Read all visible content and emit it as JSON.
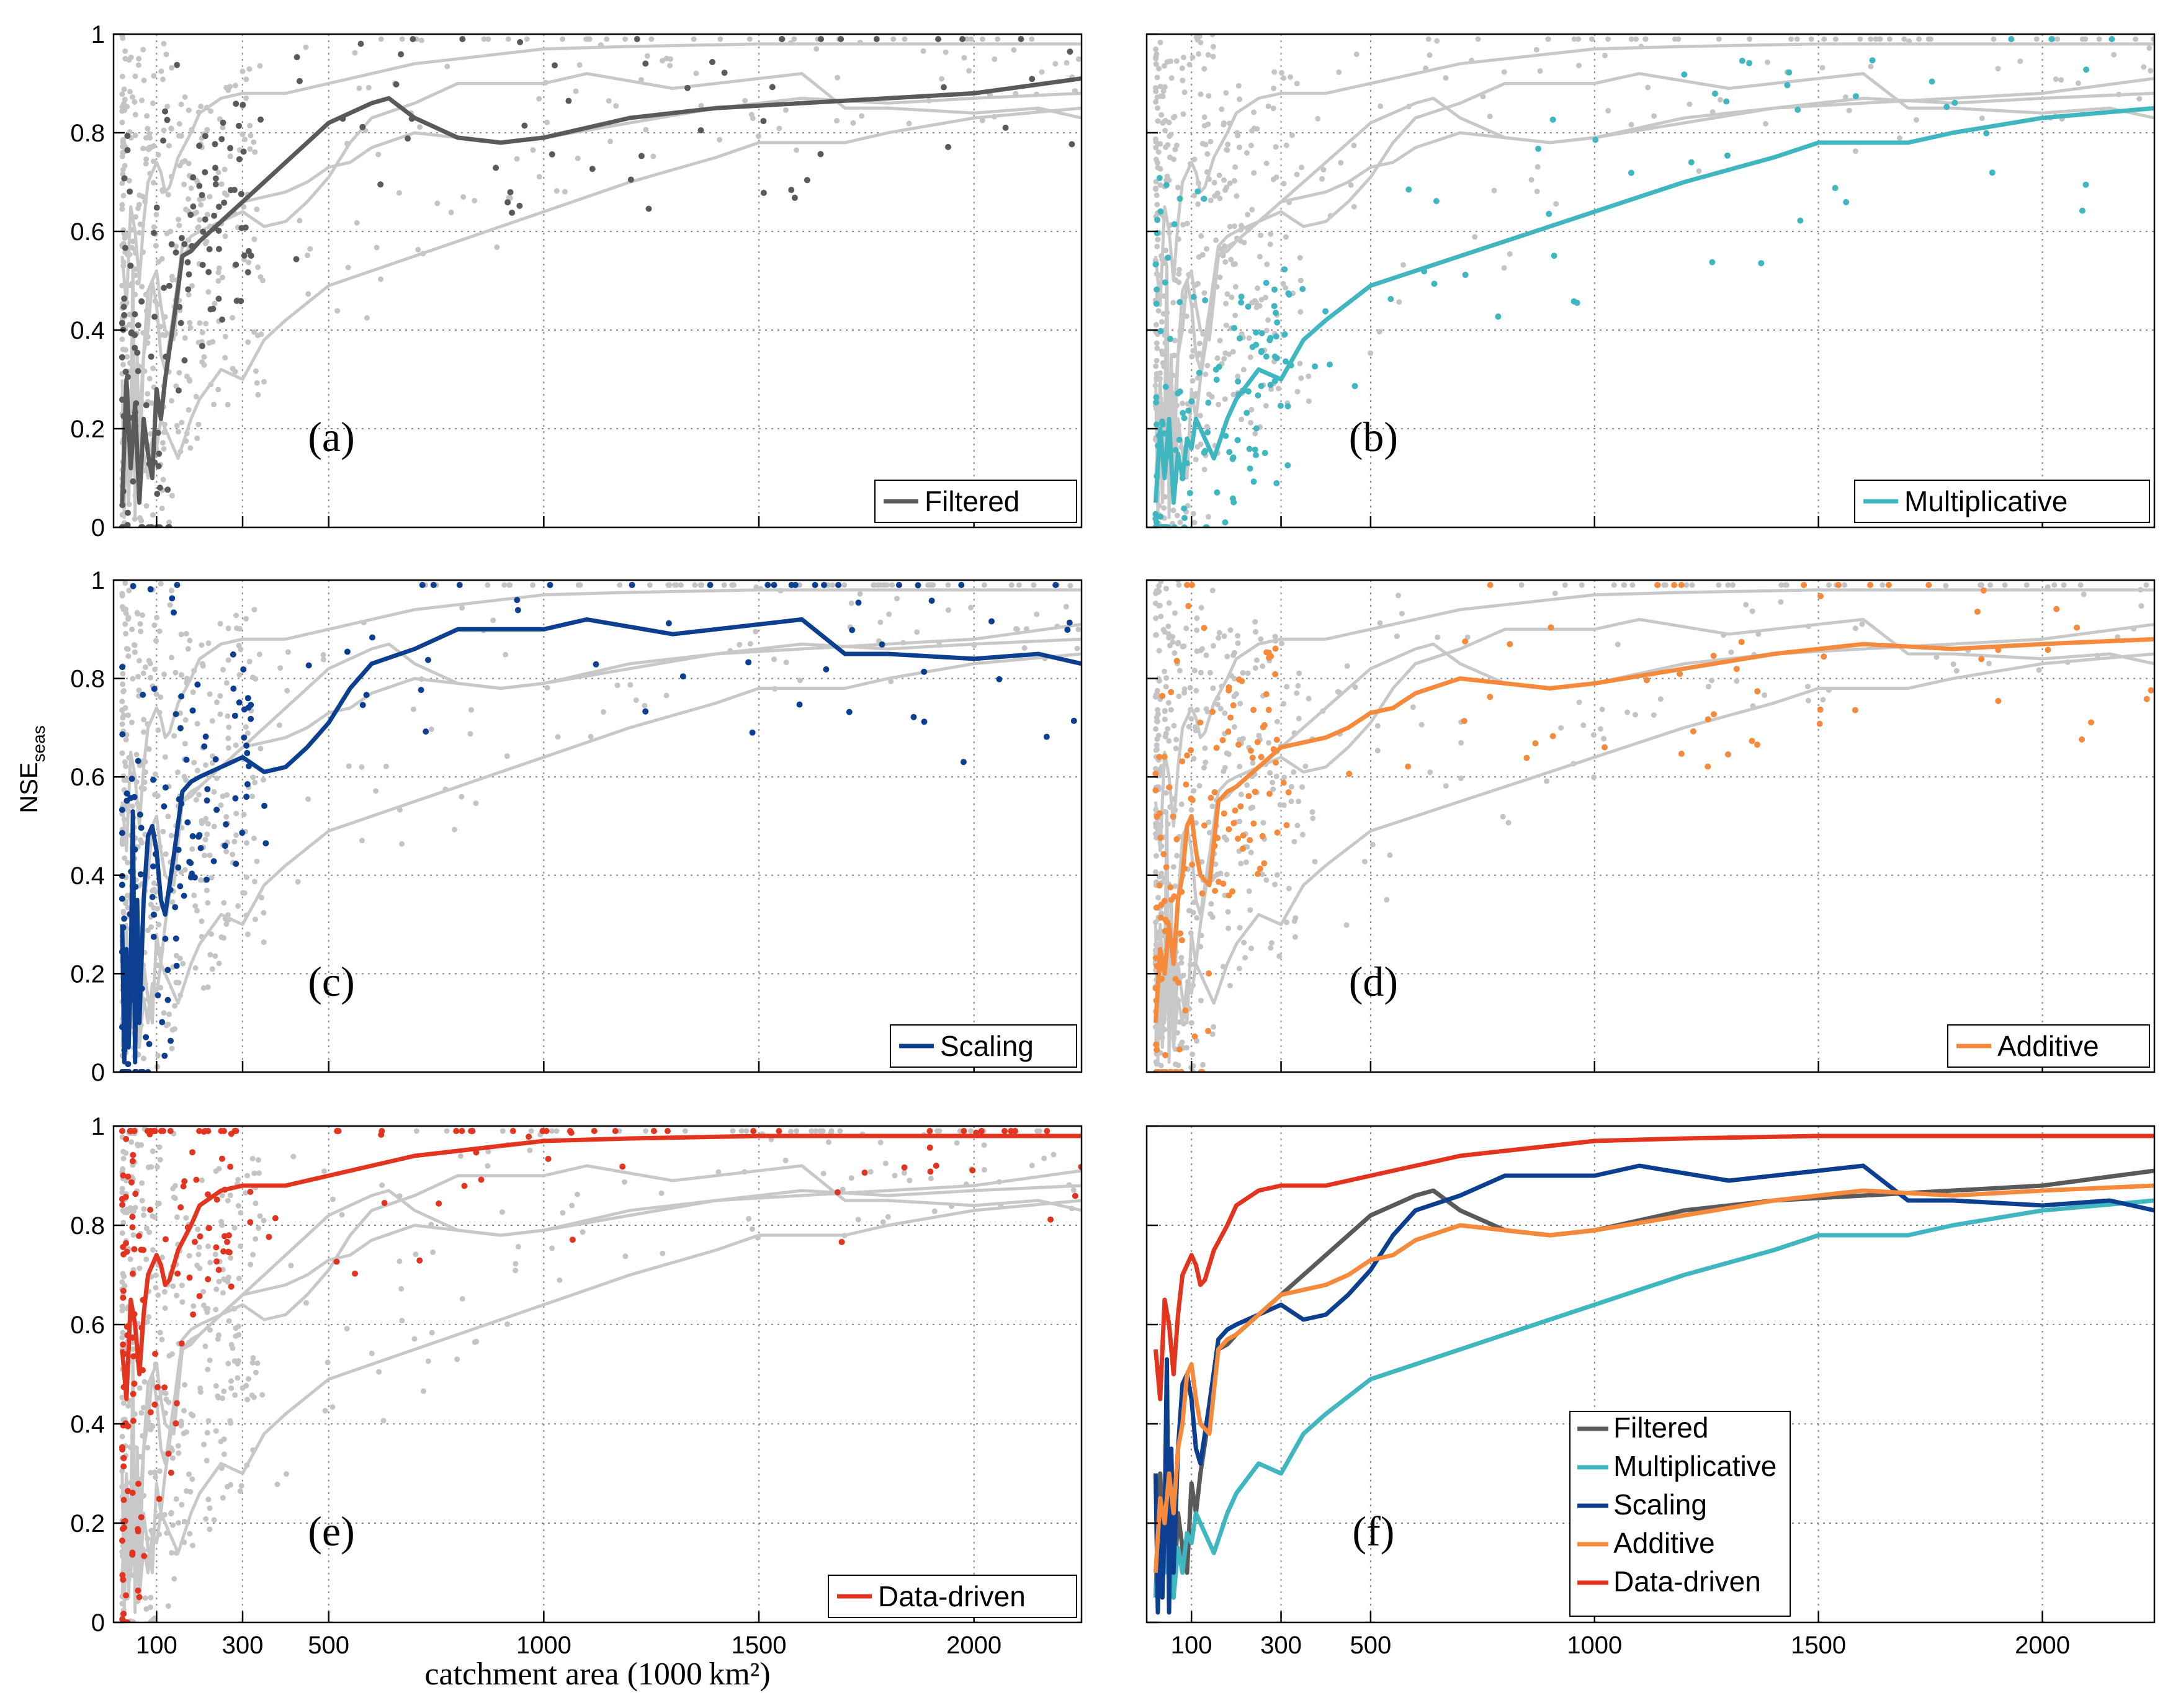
{
  "colors": {
    "background_curve": "#c8c8c8",
    "background_point": "#c4c4c4",
    "Filtered": "#5a5a5a",
    "Multiplicative": "#3fb6c0",
    "Scaling": "#0c3f8f",
    "Additive": "#f58a3c",
    "Data-driven": "#e3341f"
  },
  "chart_data": {
    "type": "line",
    "layout": "3x2 small multiples",
    "ylim": [
      0,
      1
    ],
    "xlim": [
      0,
      2250
    ],
    "x_ticks": [
      100,
      300,
      500,
      1000,
      1500,
      2000
    ],
    "y_ticks": [
      0,
      0.2,
      0.4,
      0.6,
      0.8,
      1
    ],
    "grid": true,
    "ylabel_main": "NSE",
    "ylabel_sub": "seas",
    "xlabel": "catchment area (1000 km²)",
    "series": [
      {
        "name": "Filtered",
        "x": [
          20,
          30,
          40,
          50,
          60,
          70,
          80,
          90,
          100,
          110,
          120,
          140,
          160,
          180,
          200,
          250,
          300,
          350,
          400,
          450,
          500,
          550,
          600,
          640,
          700,
          800,
          900,
          1000,
          1200,
          1400,
          1600,
          1800,
          2000,
          2250
        ],
        "y": [
          0.05,
          0.3,
          0.12,
          0.25,
          0.05,
          0.22,
          0.15,
          0.1,
          0.28,
          0.22,
          0.3,
          0.42,
          0.55,
          0.56,
          0.58,
          0.62,
          0.66,
          0.7,
          0.74,
          0.78,
          0.82,
          0.84,
          0.86,
          0.87,
          0.83,
          0.79,
          0.78,
          0.79,
          0.83,
          0.85,
          0.86,
          0.87,
          0.88,
          0.91
        ]
      },
      {
        "name": "Multiplicative",
        "x": [
          20,
          30,
          40,
          50,
          60,
          70,
          80,
          90,
          100,
          110,
          130,
          150,
          180,
          200,
          250,
          300,
          350,
          400,
          500,
          600,
          700,
          800,
          900,
          1000,
          1200,
          1400,
          1500,
          1600,
          1700,
          1800,
          2000,
          2250
        ],
        "y": [
          0.05,
          0.2,
          0.1,
          0.22,
          0.05,
          0.15,
          0.1,
          0.18,
          0.16,
          0.22,
          0.18,
          0.14,
          0.22,
          0.26,
          0.32,
          0.3,
          0.38,
          0.42,
          0.49,
          0.52,
          0.55,
          0.58,
          0.61,
          0.64,
          0.7,
          0.75,
          0.78,
          0.78,
          0.78,
          0.8,
          0.83,
          0.85
        ]
      },
      {
        "name": "Scaling",
        "x": [
          20,
          25,
          30,
          35,
          40,
          45,
          50,
          55,
          60,
          70,
          80,
          90,
          100,
          110,
          120,
          140,
          160,
          180,
          200,
          250,
          300,
          350,
          400,
          450,
          500,
          550,
          600,
          700,
          800,
          900,
          1000,
          1100,
          1300,
          1600,
          1700,
          1800,
          2000,
          2150,
          2250
        ],
        "y": [
          0.3,
          0.02,
          0.25,
          0.05,
          0.2,
          0.53,
          0.02,
          0.35,
          0.1,
          0.35,
          0.48,
          0.5,
          0.45,
          0.35,
          0.32,
          0.44,
          0.57,
          0.59,
          0.6,
          0.62,
          0.64,
          0.61,
          0.62,
          0.66,
          0.71,
          0.78,
          0.83,
          0.86,
          0.9,
          0.9,
          0.9,
          0.92,
          0.89,
          0.92,
          0.85,
          0.85,
          0.84,
          0.85,
          0.83
        ]
      },
      {
        "name": "Additive",
        "x": [
          20,
          30,
          40,
          50,
          60,
          70,
          80,
          90,
          100,
          110,
          120,
          140,
          160,
          180,
          200,
          250,
          300,
          350,
          400,
          450,
          500,
          550,
          600,
          700,
          800,
          900,
          1000,
          1200,
          1400,
          1600,
          1800,
          2000,
          2250
        ],
        "y": [
          0.1,
          0.25,
          0.2,
          0.3,
          0.22,
          0.35,
          0.4,
          0.5,
          0.52,
          0.45,
          0.4,
          0.38,
          0.55,
          0.57,
          0.58,
          0.62,
          0.66,
          0.67,
          0.68,
          0.7,
          0.73,
          0.74,
          0.77,
          0.8,
          0.79,
          0.78,
          0.79,
          0.82,
          0.85,
          0.87,
          0.86,
          0.87,
          0.88
        ]
      },
      {
        "name": "Data-driven",
        "x": [
          20,
          30,
          40,
          50,
          60,
          70,
          80,
          90,
          100,
          110,
          120,
          130,
          150,
          180,
          200,
          250,
          300,
          350,
          400,
          500,
          600,
          700,
          800,
          900,
          1000,
          1200,
          1500,
          1800,
          2000,
          2250
        ],
        "y": [
          0.55,
          0.45,
          0.65,
          0.6,
          0.5,
          0.62,
          0.7,
          0.72,
          0.74,
          0.72,
          0.68,
          0.69,
          0.75,
          0.8,
          0.84,
          0.87,
          0.88,
          0.88,
          0.88,
          0.9,
          0.92,
          0.94,
          0.95,
          0.96,
          0.97,
          0.975,
          0.98,
          0.98,
          0.98,
          0.98
        ]
      }
    ]
  },
  "panels": [
    {
      "label": "(a)",
      "series": "Filtered",
      "legend": "Filtered"
    },
    {
      "label": "(b)",
      "series": "Multiplicative",
      "legend": "Multiplicative"
    },
    {
      "label": "(c)",
      "series": "Scaling",
      "legend": "Scaling"
    },
    {
      "label": "(d)",
      "series": "Additive",
      "legend": "Additive"
    },
    {
      "label": "(e)",
      "series": "Data-driven",
      "legend": "Data-driven"
    },
    {
      "label": "(f)",
      "series": "all",
      "legend_items": [
        "Filtered",
        "Multiplicative",
        "Scaling",
        "Additive",
        "Data-driven"
      ]
    }
  ]
}
